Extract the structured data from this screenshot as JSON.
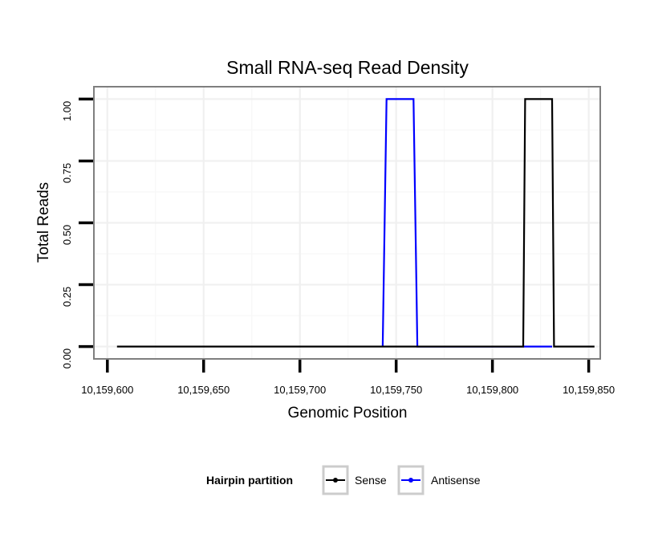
{
  "chart_data": {
    "type": "line",
    "title": "Small RNA-seq Read Density",
    "xlabel": "Genomic Position",
    "ylabel": "Total Reads",
    "xlim": [
      10159593,
      10159856
    ],
    "ylim": [
      -0.05,
      1.05
    ],
    "x_ticks": [
      10159600,
      10159650,
      10159700,
      10159750,
      10159800,
      10159850
    ],
    "x_tick_labels": [
      "10,159,600",
      "10,159,650",
      "10,159,700",
      "10,159,750",
      "10,159,800",
      "10,159,850"
    ],
    "y_ticks": [
      0,
      0.25,
      0.5,
      0.75,
      1.0
    ],
    "y_tick_labels": [
      "0.00",
      "0.25",
      "0.50",
      "0.75",
      "1.00"
    ],
    "grid": true,
    "legend": {
      "title": "Hairpin partition",
      "position": "bottom",
      "entries": [
        "Sense",
        "Antisense"
      ]
    },
    "series": [
      {
        "name": "Antisense",
        "color": "#0000ff",
        "x": [
          10159743,
          10159745,
          10159759,
          10159761,
          10159816,
          10159831
        ],
        "y": [
          0,
          1,
          1,
          0,
          0,
          0
        ]
      },
      {
        "name": "Sense",
        "color": "#000000",
        "x": [
          10159605,
          10159744,
          10159816,
          10159817,
          10159831,
          10159832,
          10159853
        ],
        "y": [
          0,
          0,
          0,
          1,
          1,
          0,
          0
        ]
      }
    ]
  }
}
